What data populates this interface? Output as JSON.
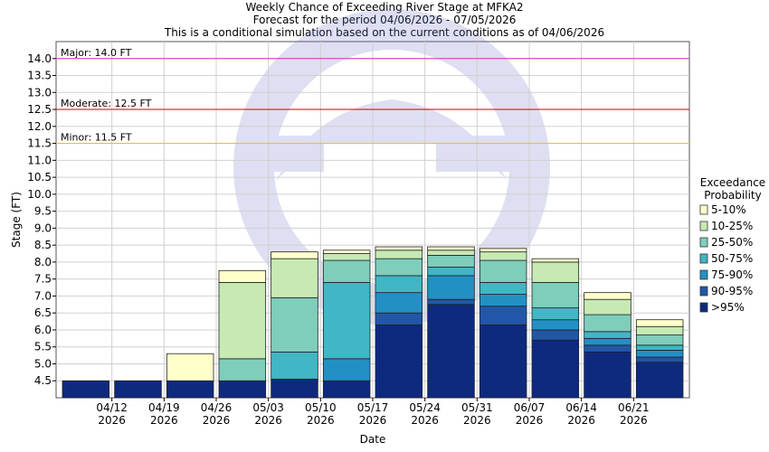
{
  "chart_data": {
    "type": "bar",
    "title": "Weekly Chance of Exceeding River Stage at MFKA2",
    "subtitle": "Forecast for the period 04/06/2026 - 07/05/2026",
    "subtitle2": "This is a conditional simulation based on the current conditions as of 04/06/2026",
    "xlabel": "Date",
    "ylabel": "Stage (FT)",
    "ylim": [
      4.0,
      14.5
    ],
    "y_ticks": [
      "4.5",
      "5.0",
      "5.5",
      "6.0",
      "6.5",
      "7.0",
      "7.5",
      "8.0",
      "8.5",
      "9.0",
      "9.5",
      "10.0",
      "10.5",
      "11.0",
      "11.5",
      "12.0",
      "12.5",
      "13.0",
      "13.5",
      "14.0"
    ],
    "x_ticks": [
      {
        "date": "04/12",
        "year": "2026"
      },
      {
        "date": "04/19",
        "year": "2026"
      },
      {
        "date": "04/26",
        "year": "2026"
      },
      {
        "date": "05/03",
        "year": "2026"
      },
      {
        "date": "05/10",
        "year": "2026"
      },
      {
        "date": "05/17",
        "year": "2026"
      },
      {
        "date": "05/24",
        "year": "2026"
      },
      {
        "date": "05/31",
        "year": "2026"
      },
      {
        "date": "06/07",
        "year": "2026"
      },
      {
        "date": "06/14",
        "year": "2026"
      },
      {
        "date": "06/21",
        "year": "2026"
      }
    ],
    "thresholds": [
      {
        "label": "Major: 14.0 FT",
        "value": 14.0,
        "color": "#cc33cc"
      },
      {
        "label": "Moderate: 12.5 FT",
        "value": 12.5,
        "color": "#cc0000"
      },
      {
        "label": "Minor: 11.5 FT",
        "value": 11.5,
        "color": "#e6c800"
      }
    ],
    "legend_title": [
      "Exceedance",
      "Probability"
    ],
    "legend_position": "right",
    "series": [
      {
        "name": ">95%",
        "color": "#0e2a7f"
      },
      {
        "name": "90-95%",
        "color": "#2157a6"
      },
      {
        "name": "75-90%",
        "color": "#2390c4"
      },
      {
        "name": "50-75%",
        "color": "#41b6c4"
      },
      {
        "name": "25-50%",
        "color": "#7fcdbb"
      },
      {
        "name": "10-25%",
        "color": "#c7e9b4"
      },
      {
        "name": "5-10%",
        "color": "#ffffcc"
      }
    ],
    "legend_order": [
      "5-10%",
      "10-25%",
      "25-50%",
      "50-75%",
      "75-90%",
      "90-95%",
      ">95%"
    ],
    "weeks": [
      {
        "stack": [
          4.5,
          4.5,
          4.5,
          4.5,
          4.5,
          4.5,
          4.5
        ]
      },
      {
        "stack": [
          4.5,
          4.5,
          4.5,
          4.5,
          4.5,
          4.5,
          4.5
        ]
      },
      {
        "stack": [
          4.5,
          4.5,
          4.5,
          4.5,
          4.5,
          4.5,
          5.3
        ]
      },
      {
        "stack": [
          4.5,
          4.5,
          4.5,
          4.5,
          5.15,
          7.4,
          7.75
        ]
      },
      {
        "stack": [
          4.55,
          4.55,
          4.55,
          5.35,
          6.95,
          8.1,
          8.3
        ]
      },
      {
        "stack": [
          4.5,
          4.5,
          5.15,
          7.4,
          8.05,
          8.25,
          8.35
        ]
      },
      {
        "stack": [
          6.15,
          6.5,
          7.1,
          7.6,
          8.1,
          8.35,
          8.45
        ]
      },
      {
        "stack": [
          6.75,
          6.9,
          7.6,
          7.85,
          8.2,
          8.35,
          8.45
        ]
      },
      {
        "stack": [
          6.15,
          6.7,
          7.05,
          7.4,
          8.05,
          8.3,
          8.4
        ]
      },
      {
        "stack": [
          5.7,
          6.0,
          6.3,
          6.65,
          7.4,
          8.0,
          8.1
        ]
      },
      {
        "stack": [
          5.35,
          5.55,
          5.75,
          5.95,
          6.45,
          6.9,
          7.1
        ]
      },
      {
        "stack": [
          5.05,
          5.2,
          5.4,
          5.55,
          5.85,
          6.1,
          6.3
        ]
      }
    ]
  }
}
